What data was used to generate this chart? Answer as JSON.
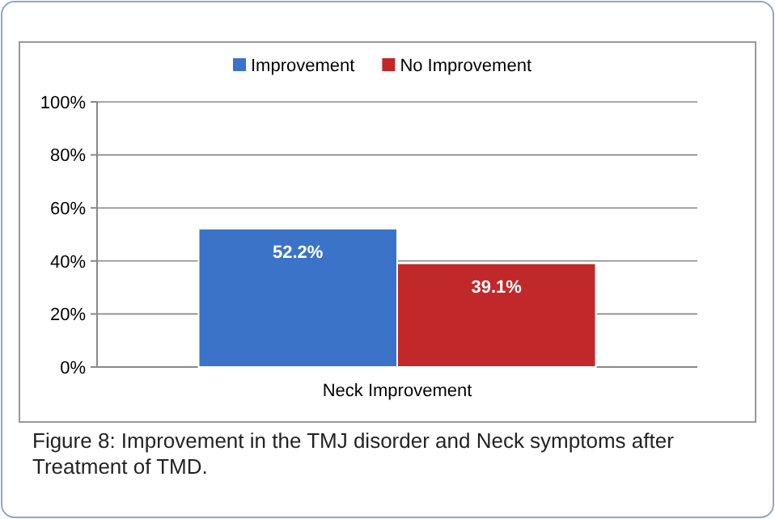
{
  "chart_data": {
    "type": "bar",
    "categories": [
      "Neck Improvement"
    ],
    "series": [
      {
        "name": "Improvement",
        "color": "#3b73c8",
        "values": [
          52.2
        ],
        "value_labels": [
          "52.2%"
        ]
      },
      {
        "name": "No Improvement",
        "color": "#c0282a",
        "values": [
          39.1
        ],
        "value_labels": [
          "39.1%"
        ]
      }
    ],
    "ylim": [
      0,
      100
    ],
    "yticks": [
      {
        "value": 0,
        "label": "0%"
      },
      {
        "value": 20,
        "label": "20%"
      },
      {
        "value": 40,
        "label": "40%"
      },
      {
        "value": 60,
        "label": "60%"
      },
      {
        "value": 80,
        "label": "80%"
      },
      {
        "value": 100,
        "label": "100%"
      }
    ],
    "grid": "y",
    "legend": "top",
    "annotations": [
      "Figure 8: Improvement in the TMJ disorder and Neck symptoms after Treatment of TMD."
    ]
  }
}
